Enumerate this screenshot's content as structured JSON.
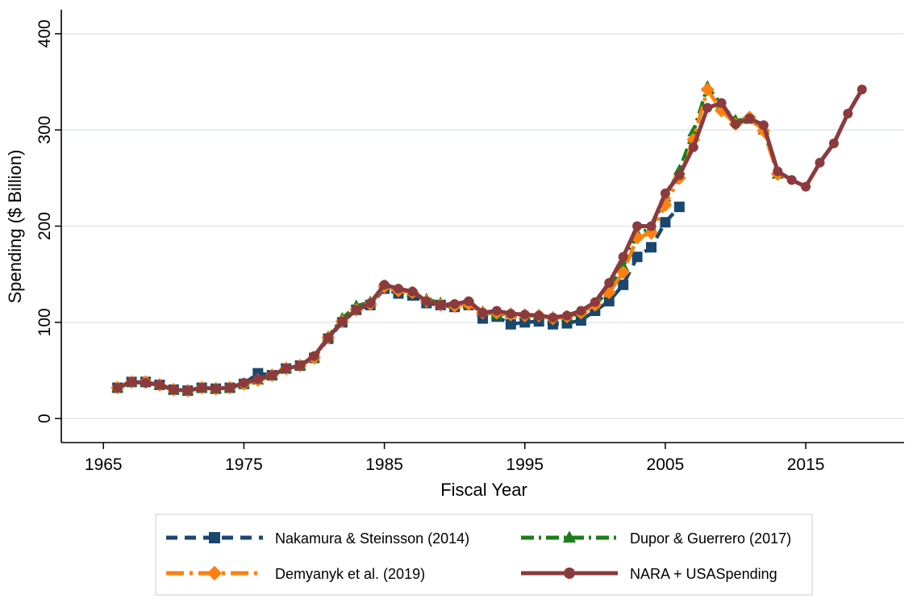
{
  "chart_data": {
    "type": "line",
    "title": "",
    "xlabel": "Fiscal Year",
    "ylabel": "Spending ($ Billion)",
    "xlim": [
      1962,
      2022
    ],
    "ylim": [
      -25,
      425
    ],
    "xticks": [
      1965,
      1975,
      1985,
      1995,
      2005,
      2015
    ],
    "yticks": [
      0,
      100,
      200,
      300,
      400
    ],
    "grid": "horizontal",
    "legend_position": "bottom",
    "series": [
      {
        "name": "Nakamura & Steinsson (2014)",
        "color": "#1a476f",
        "dash": "dashed",
        "marker": "square",
        "x": [
          1966,
          1967,
          1968,
          1969,
          1970,
          1971,
          1972,
          1973,
          1974,
          1975,
          1976,
          1977,
          1978,
          1979,
          1980,
          1981,
          1982,
          1983,
          1984,
          1985,
          1986,
          1987,
          1988,
          1989,
          1990,
          1991,
          1992,
          1993,
          1994,
          1995,
          1996,
          1997,
          1998,
          1999,
          2000,
          2001,
          2002,
          2003,
          2004,
          2005,
          2006
        ],
        "y": [
          32,
          38,
          38,
          35,
          30,
          29,
          32,
          31,
          32,
          36,
          47,
          45,
          52,
          55,
          63,
          83,
          100,
          113,
          118,
          135,
          130,
          128,
          120,
          118,
          116,
          118,
          104,
          106,
          98,
          100,
          101,
          98,
          99,
          102,
          112,
          122,
          139,
          168,
          178,
          204,
          220
        ]
      },
      {
        "name": "Dupor & Guerrero (2017)",
        "color": "#1b7e1b",
        "dash": "dash-dot",
        "marker": "triangle",
        "x": [
          1966,
          1967,
          1968,
          1969,
          1970,
          1971,
          1972,
          1973,
          1974,
          1975,
          1976,
          1977,
          1978,
          1979,
          1980,
          1981,
          1982,
          1983,
          1984,
          1985,
          1986,
          1987,
          1988,
          1989,
          1990,
          1991,
          1992,
          1993,
          1994,
          1995,
          1996,
          1997,
          1998,
          1999,
          2000,
          2001,
          2002,
          2003,
          2004,
          2005,
          2006,
          2007,
          2008,
          2009,
          2010,
          2011,
          2012,
          2013
        ],
        "y": [
          32,
          38,
          38,
          35,
          30,
          29,
          32,
          31,
          32,
          36,
          40,
          45,
          52,
          55,
          63,
          85,
          104,
          117,
          121,
          138,
          134,
          131,
          124,
          120,
          118,
          119,
          111,
          108,
          109,
          108,
          107,
          105,
          106,
          110,
          118,
          134,
          158,
          192,
          198,
          230,
          258,
          298,
          345,
          326,
          310,
          311,
          300,
          254
        ]
      },
      {
        "name": "Demyanyk et al. (2019)",
        "color": "#ff7f0e",
        "dash": "long-dash-dot",
        "marker": "diamond",
        "x": [
          1966,
          1967,
          1968,
          1969,
          1970,
          1971,
          1972,
          1973,
          1974,
          1975,
          1976,
          1977,
          1978,
          1979,
          1980,
          1981,
          1982,
          1983,
          1984,
          1985,
          1986,
          1987,
          1988,
          1989,
          1990,
          1991,
          1992,
          1993,
          1994,
          1995,
          1996,
          1997,
          1998,
          1999,
          2000,
          2001,
          2002,
          2003,
          2004,
          2005,
          2006,
          2007,
          2008,
          2009,
          2010,
          2011,
          2012,
          2013
        ],
        "y": [
          32,
          38,
          38,
          35,
          30,
          29,
          32,
          31,
          32,
          36,
          40,
          45,
          52,
          55,
          63,
          84,
          101,
          113,
          119,
          137,
          133,
          131,
          122,
          118,
          117,
          119,
          110,
          110,
          108,
          107,
          107,
          104,
          106,
          110,
          118,
          131,
          152,
          188,
          193,
          222,
          250,
          290,
          342,
          320,
          306,
          313,
          299,
          254
        ]
      },
      {
        "name": "NARA + USASpending",
        "color": "#8b3a3e",
        "dash": "solid",
        "marker": "circle",
        "x": [
          1966,
          1967,
          1968,
          1969,
          1970,
          1971,
          1972,
          1973,
          1974,
          1975,
          1976,
          1977,
          1978,
          1979,
          1980,
          1981,
          1982,
          1983,
          1984,
          1985,
          1986,
          1987,
          1988,
          1989,
          1990,
          1991,
          1992,
          1993,
          1994,
          1995,
          1996,
          1997,
          1998,
          1999,
          2000,
          2001,
          2002,
          2003,
          2004,
          2005,
          2006,
          2007,
          2008,
          2009,
          2010,
          2011,
          2012,
          2013,
          2014,
          2015,
          2016,
          2017,
          2018,
          2019
        ],
        "y": [
          32,
          38,
          37,
          35,
          30,
          29,
          32,
          31,
          32,
          37,
          41,
          45,
          52,
          55,
          65,
          84,
          101,
          113,
          120,
          139,
          135,
          132,
          122,
          118,
          119,
          122,
          110,
          112,
          109,
          108,
          107,
          105,
          107,
          112,
          121,
          141,
          168,
          200,
          200,
          234,
          253,
          282,
          323,
          328,
          306,
          312,
          305,
          257,
          248,
          241,
          266,
          286,
          317,
          342
        ]
      }
    ]
  }
}
